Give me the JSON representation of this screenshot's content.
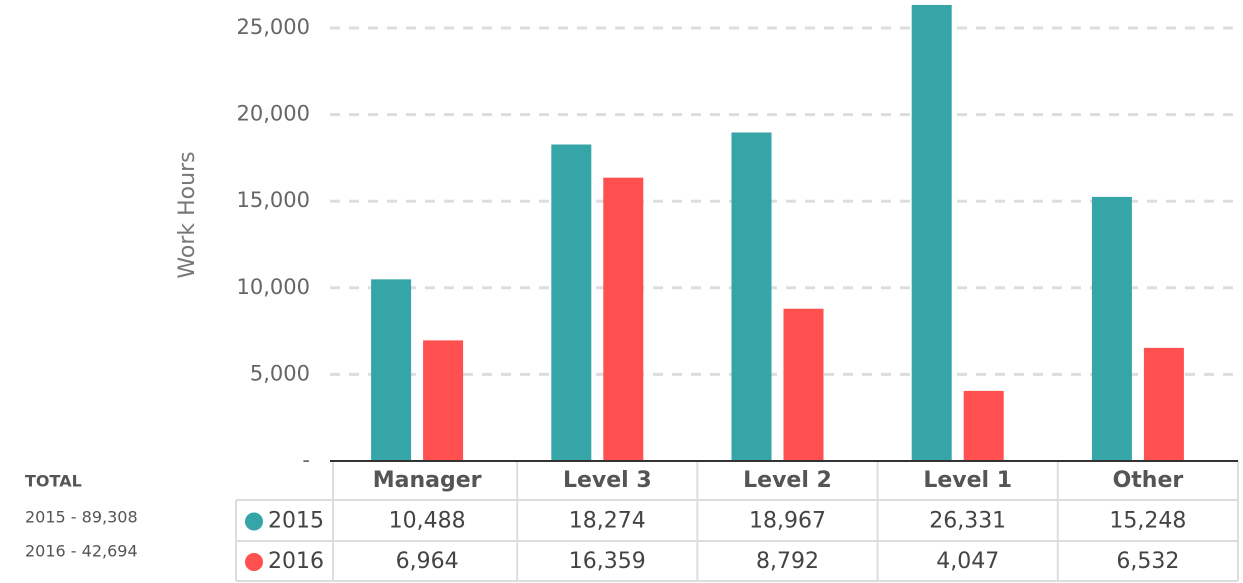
{
  "chart_data": {
    "type": "bar",
    "y_label": "Work Hours",
    "categories": [
      "Manager",
      "Level 3",
      "Level 2",
      "Level 1",
      "Other"
    ],
    "series": [
      {
        "name": "2015",
        "color": "#35a5a8",
        "values": [
          10488,
          18274,
          18967,
          26331,
          15248
        ],
        "value_labels": [
          "10,488",
          "18,274",
          "18,967",
          "26,331",
          "15,248"
        ]
      },
      {
        "name": "2016",
        "color": "#ff4f4f",
        "values": [
          6964,
          16359,
          8792,
          4047,
          6532
        ],
        "value_labels": [
          "6,964",
          "16,359",
          "8,792",
          "4,047",
          "6,532"
        ]
      }
    ],
    "ylim": [
      0,
      25000
    ],
    "yticks": [
      {
        "value": 0,
        "label": "-"
      },
      {
        "value": 5000,
        "label": "5,000"
      },
      {
        "value": 10000,
        "label": "10,000"
      },
      {
        "value": 15000,
        "label": "15,000"
      },
      {
        "value": 20000,
        "label": "20,000"
      },
      {
        "value": 25000,
        "label": "25,000"
      }
    ],
    "grid": true,
    "totals_title": "TOTAL",
    "totals": [
      "2015 -  89,308",
      "2016 -  42,694"
    ]
  }
}
